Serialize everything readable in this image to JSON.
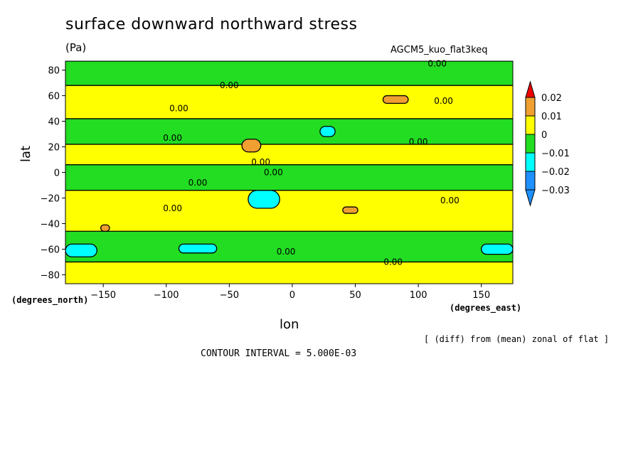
{
  "title": "surface downward northward stress",
  "units": "(Pa)",
  "run_name": "AGCM5_kuo_flat3keq",
  "subtitle": "[ (diff) from (mean) zonal of flat ]",
  "contour_interval": "CONTOUR INTERVAL = 5.000E-03",
  "chart_data": {
    "type": "heatmap",
    "title": "surface downward northward stress",
    "xlabel": "lon",
    "ylabel": "lat",
    "x_unit": "(degrees_east)",
    "y_unit": "(degrees_north)",
    "xlim": [
      -180,
      175
    ],
    "ylim": [
      -87,
      87
    ],
    "x_ticks": [
      -150,
      -100,
      -50,
      0,
      50,
      100,
      150
    ],
    "y_ticks": [
      -80,
      -60,
      -40,
      -20,
      0,
      20,
      40,
      60,
      80
    ],
    "x_tick_labels": [
      "−150",
      "−100",
      "−50",
      "0",
      "50",
      "100",
      "150"
    ],
    "y_tick_labels": [
      "−80",
      "−60",
      "−40",
      "−20",
      "0",
      "20",
      "40",
      "60",
      "80"
    ],
    "colorbar": {
      "levels": [
        0.02,
        0.01,
        0,
        -0.01,
        -0.02,
        -0.03
      ],
      "labels": [
        "0.02",
        "0.01",
        "0",
        "−0.01",
        "−0.02",
        "−0.03"
      ],
      "colors": {
        "above_0.02": "#ee0000",
        "0.01_to_0.02": "#f0a030",
        "0_to_0.01": "#ffff00",
        "-0.01_to_0": "#22dd22",
        "-0.02_to_-0.01": "#00ffff",
        "-0.03_to_-0.02": "#1e90ff",
        "below_-0.03": "#1e90ff"
      }
    },
    "regions": [
      {
        "value_range": "0_to_0.01",
        "lon": [
          -180,
          175
        ],
        "lat": [
          -87,
          87
        ],
        "note": "background"
      },
      {
        "value_range": "-0.01_to_0",
        "lon": [
          -180,
          175
        ],
        "lat": [
          -14,
          6
        ],
        "note": "equatorial band"
      },
      {
        "value_range": "-0.01_to_0",
        "lon": [
          -180,
          175
        ],
        "lat": [
          22,
          42
        ],
        "note": "northern subtropical band"
      },
      {
        "value_range": "-0.01_to_0",
        "lon": [
          -180,
          175
        ],
        "lat": [
          68,
          87
        ],
        "note": "arctic band"
      },
      {
        "value_range": "-0.01_to_0",
        "lon": [
          -180,
          175
        ],
        "lat": [
          -70,
          -46
        ],
        "note": "southern band"
      },
      {
        "value_range": "0.01_to_0.02",
        "lon": [
          -40,
          -25
        ],
        "lat": [
          16,
          26
        ]
      },
      {
        "value_range": "0.01_to_0.02",
        "lon": [
          72,
          92
        ],
        "lat": [
          54,
          60
        ]
      },
      {
        "value_range": "0.01_to_0.02",
        "lon": [
          40,
          52
        ],
        "lat": [
          -32,
          -27
        ]
      },
      {
        "value_range": "0.01_to_0.02",
        "lon": [
          -152,
          -145
        ],
        "lat": [
          -46,
          -41
        ]
      },
      {
        "value_range": "-0.02_to_-0.01",
        "lon": [
          -35,
          -10
        ],
        "lat": [
          -28,
          -14
        ]
      },
      {
        "value_range": "-0.02_to_-0.01",
        "lon": [
          22,
          34
        ],
        "lat": [
          28,
          36
        ]
      },
      {
        "value_range": "-0.02_to_-0.01",
        "lon": [
          -180,
          -155
        ],
        "lat": [
          -66,
          -56
        ]
      },
      {
        "value_range": "-0.02_to_-0.01",
        "lon": [
          -90,
          -60
        ],
        "lat": [
          -63,
          -56
        ]
      },
      {
        "value_range": "-0.02_to_-0.01",
        "lon": [
          150,
          175
        ],
        "lat": [
          -64,
          -56
        ]
      }
    ],
    "contour_labels": [
      {
        "text": "0.00",
        "lon": 115,
        "lat": 85
      },
      {
        "text": "0.00",
        "lon": -50,
        "lat": 68
      },
      {
        "text": "0.00",
        "lon": 120,
        "lat": 56
      },
      {
        "text": "0.00",
        "lon": -90,
        "lat": 50
      },
      {
        "text": "0.00",
        "lon": -95,
        "lat": 27
      },
      {
        "text": "0.00",
        "lon": 100,
        "lat": 24
      },
      {
        "text": "0.00",
        "lon": -25,
        "lat": 8
      },
      {
        "text": "0.00",
        "lon": -15,
        "lat": 0
      },
      {
        "text": "0.00",
        "lon": -75,
        "lat": -8
      },
      {
        "text": "0.00",
        "lon": -95,
        "lat": -28
      },
      {
        "text": "0.00",
        "lon": 125,
        "lat": -22
      },
      {
        "text": "0.00",
        "lon": -5,
        "lat": -62
      },
      {
        "text": "0.00",
        "lon": 80,
        "lat": -70
      }
    ]
  }
}
